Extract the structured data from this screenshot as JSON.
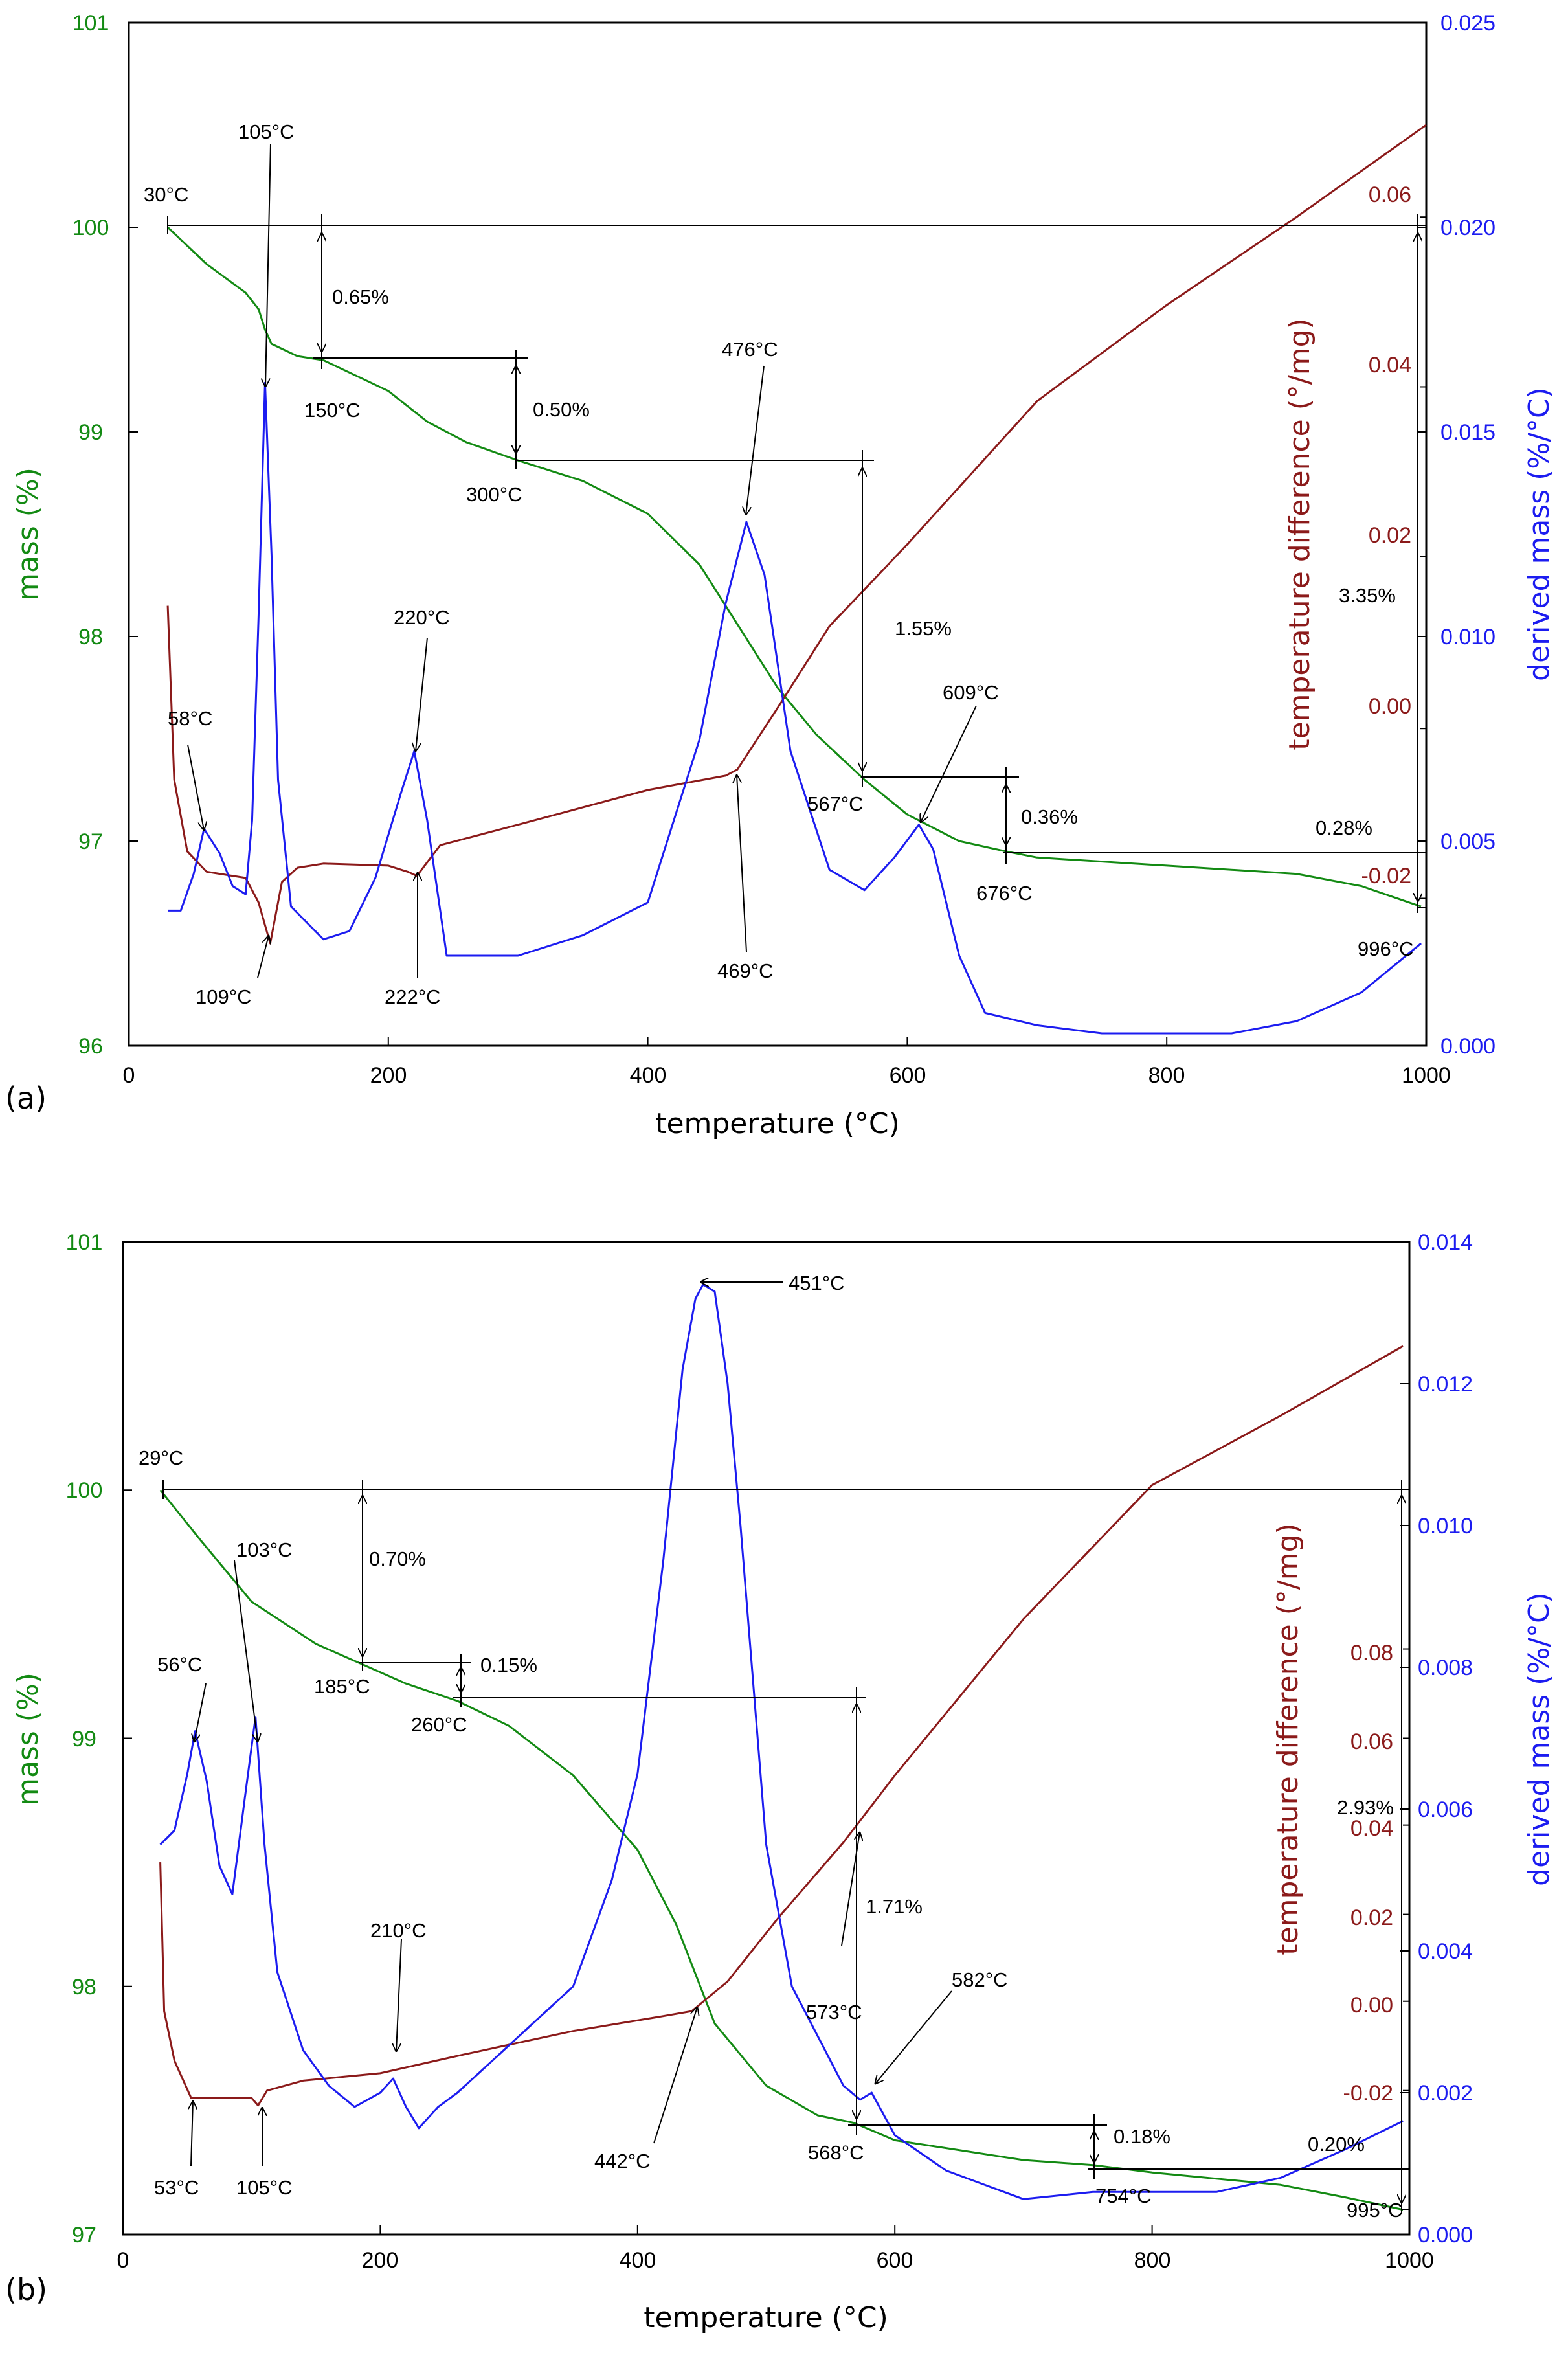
{
  "colors": {
    "mass": "#138a13",
    "dta": "#8b1a1a",
    "dtg": "#1c1cf0",
    "axis": "#000000"
  },
  "chart_data": [
    {
      "panel": "(a)",
      "type": "line",
      "xlabel": "temperature (°C)",
      "y1label": "mass (%)",
      "y2label": "temperature difference (°/mg)",
      "y3label": "derived mass (%/°C)",
      "xlim": [
        0,
        1000
      ],
      "y1lim": [
        96,
        101
      ],
      "y3lim": [
        0,
        0.025
      ],
      "xticks": [
        "0",
        "200",
        "400",
        "600",
        "800",
        "1000"
      ],
      "y1ticks": [
        "96",
        "97",
        "98",
        "99",
        "100",
        "101"
      ],
      "y2ticks": [
        "-0.02",
        "0.00",
        "0.02",
        "0.04",
        "0.06"
      ],
      "y2tick_values_mass": [
        96.72,
        97.55,
        98.39,
        99.22,
        100.05
      ],
      "y3ticks": [
        "0.000",
        "0.005",
        "0.010",
        "0.015",
        "0.020",
        "0.025"
      ],
      "series": [
        {
          "name": "mass",
          "axis": "y1",
          "x": [
            30,
            60,
            90,
            100,
            105,
            110,
            130,
            150,
            200,
            230,
            260,
            300,
            350,
            400,
            440,
            470,
            500,
            530,
            567,
            600,
            640,
            676,
            700,
            800,
            900,
            950,
            996
          ],
          "y": [
            100.0,
            99.82,
            99.68,
            99.6,
            99.5,
            99.43,
            99.37,
            99.35,
            99.2,
            99.05,
            98.95,
            98.86,
            98.76,
            98.6,
            98.35,
            98.05,
            97.75,
            97.52,
            97.3,
            97.13,
            97.0,
            96.95,
            96.92,
            96.88,
            96.84,
            96.78,
            96.68
          ]
        },
        {
          "name": "temperature difference",
          "axis": "y1",
          "x": [
            30,
            35,
            45,
            60,
            90,
            100,
            109,
            118,
            130,
            150,
            200,
            215,
            222,
            240,
            300,
            400,
            460,
            469,
            500,
            540,
            600,
            700,
            800,
            900,
            1000
          ],
          "y": [
            98.15,
            97.3,
            96.95,
            96.85,
            96.82,
            96.7,
            96.5,
            96.8,
            96.87,
            96.89,
            96.88,
            96.85,
            96.83,
            96.98,
            97.08,
            97.25,
            97.32,
            97.35,
            97.65,
            98.05,
            98.45,
            99.15,
            99.62,
            100.05,
            100.5
          ]
        },
        {
          "name": "derived mass",
          "axis": "y3",
          "x": [
            30,
            40,
            50,
            58,
            70,
            80,
            90,
            95,
            100,
            105,
            110,
            115,
            125,
            150,
            170,
            190,
            210,
            220,
            230,
            245,
            260,
            300,
            350,
            400,
            440,
            460,
            476,
            490,
            510,
            540,
            567,
            590,
            609,
            620,
            640,
            660,
            700,
            750,
            800,
            850,
            900,
            950,
            996
          ],
          "y": [
            0.0033,
            0.0033,
            0.0042,
            0.0053,
            0.0047,
            0.0039,
            0.0037,
            0.0055,
            0.0105,
            0.0162,
            0.012,
            0.0065,
            0.0034,
            0.0026,
            0.0028,
            0.0041,
            0.0062,
            0.0072,
            0.0055,
            0.0022,
            0.0022,
            0.0022,
            0.0027,
            0.0035,
            0.0075,
            0.0108,
            0.0128,
            0.0115,
            0.0072,
            0.0043,
            0.0038,
            0.0046,
            0.0054,
            0.0048,
            0.0022,
            0.0008,
            0.0005,
            0.0003,
            0.0003,
            0.0003,
            0.0006,
            0.0013,
            0.0025
          ]
        }
      ],
      "annotations": [
        "30°C",
        "105°C",
        "0.65%",
        "150°C",
        "0.50%",
        "300°C",
        "476°C",
        "1.55%",
        "3.35%",
        "220°C",
        "58°C",
        "609°C",
        "567°C",
        "0.36%",
        "676°C",
        "0.28%",
        "109°C",
        "222°C",
        "469°C",
        "996°C"
      ]
    },
    {
      "panel": "(b)",
      "type": "line",
      "xlabel": "temperature (°C)",
      "y1label": "mass (%)",
      "y2label": "temperature difference (°/mg)",
      "y3label": "derived mass (%/°C)",
      "xlim": [
        0,
        1000
      ],
      "y1lim": [
        97,
        101
      ],
      "y3lim": [
        0,
        0.014
      ],
      "xticks": [
        "0",
        "200",
        "400",
        "600",
        "800",
        "1000"
      ],
      "y1ticks": [
        "97",
        "98",
        "99",
        "100",
        "101"
      ],
      "y2ticks": [
        "-0.02",
        "0.00",
        "0.02",
        "0.04",
        "0.06",
        "0.08"
      ],
      "y2tick_values_mass": [
        97.58,
        97.94,
        98.29,
        98.65,
        99.0,
        99.36
      ],
      "y3ticks": [
        "0.000",
        "0.002",
        "0.004",
        "0.006",
        "0.008",
        "0.010",
        "0.012",
        "0.014"
      ],
      "series": [
        {
          "name": "mass",
          "axis": "y1",
          "x": [
            29,
            60,
            100,
            150,
            185,
            220,
            260,
            300,
            350,
            400,
            430,
            460,
            500,
            540,
            568,
            600,
            700,
            754,
            800,
            900,
            950,
            995
          ],
          "y": [
            100.0,
            99.8,
            99.55,
            99.38,
            99.3,
            99.22,
            99.15,
            99.05,
            98.85,
            98.55,
            98.25,
            97.85,
            97.6,
            97.48,
            97.45,
            97.38,
            97.3,
            97.28,
            97.25,
            97.2,
            97.15,
            97.1
          ]
        },
        {
          "name": "temperature difference",
          "axis": "y1",
          "x": [
            29,
            32,
            40,
            53,
            70,
            100,
            105,
            112,
            140,
            200,
            260,
            350,
            420,
            442,
            470,
            510,
            560,
            600,
            700,
            800,
            900,
            995
          ],
          "y": [
            98.5,
            97.9,
            97.7,
            97.55,
            97.55,
            97.55,
            97.52,
            97.58,
            97.62,
            97.65,
            97.72,
            97.82,
            97.88,
            97.9,
            98.02,
            98.28,
            98.58,
            98.85,
            99.48,
            100.02,
            100.3,
            100.58
          ]
        },
        {
          "name": "derived mass",
          "axis": "y3",
          "x": [
            29,
            40,
            50,
            56,
            65,
            75,
            85,
            95,
            103,
            110,
            120,
            140,
            160,
            180,
            200,
            210,
            220,
            230,
            245,
            260,
            290,
            320,
            350,
            380,
            400,
            420,
            435,
            445,
            451,
            460,
            470,
            480,
            500,
            520,
            540,
            560,
            573,
            582,
            600,
            640,
            700,
            754,
            800,
            850,
            900,
            950,
            995
          ],
          "y": [
            0.0055,
            0.0057,
            0.0065,
            0.0071,
            0.0064,
            0.0052,
            0.0048,
            0.0062,
            0.0073,
            0.0055,
            0.0037,
            0.0026,
            0.0021,
            0.0018,
            0.002,
            0.0022,
            0.0018,
            0.0015,
            0.0018,
            0.002,
            0.0025,
            0.003,
            0.0035,
            0.005,
            0.0065,
            0.0095,
            0.0122,
            0.0132,
            0.0134,
            0.0133,
            0.012,
            0.01,
            0.0055,
            0.0035,
            0.0028,
            0.0021,
            0.0019,
            0.002,
            0.0014,
            0.0009,
            0.0005,
            0.0006,
            0.0006,
            0.0006,
            0.0008,
            0.0012,
            0.0016
          ]
        }
      ],
      "annotations": [
        "451°C",
        "29°C",
        "0.70%",
        "103°C",
        "56°C",
        "185°C",
        "0.15%",
        "260°C",
        "2.93%",
        "1.71%",
        "210°C",
        "573°C",
        "582°C",
        "0.18%",
        "0.20%",
        "568°C",
        "754°C",
        "995°C",
        "53°C",
        "105°C",
        "442°C"
      ]
    }
  ]
}
